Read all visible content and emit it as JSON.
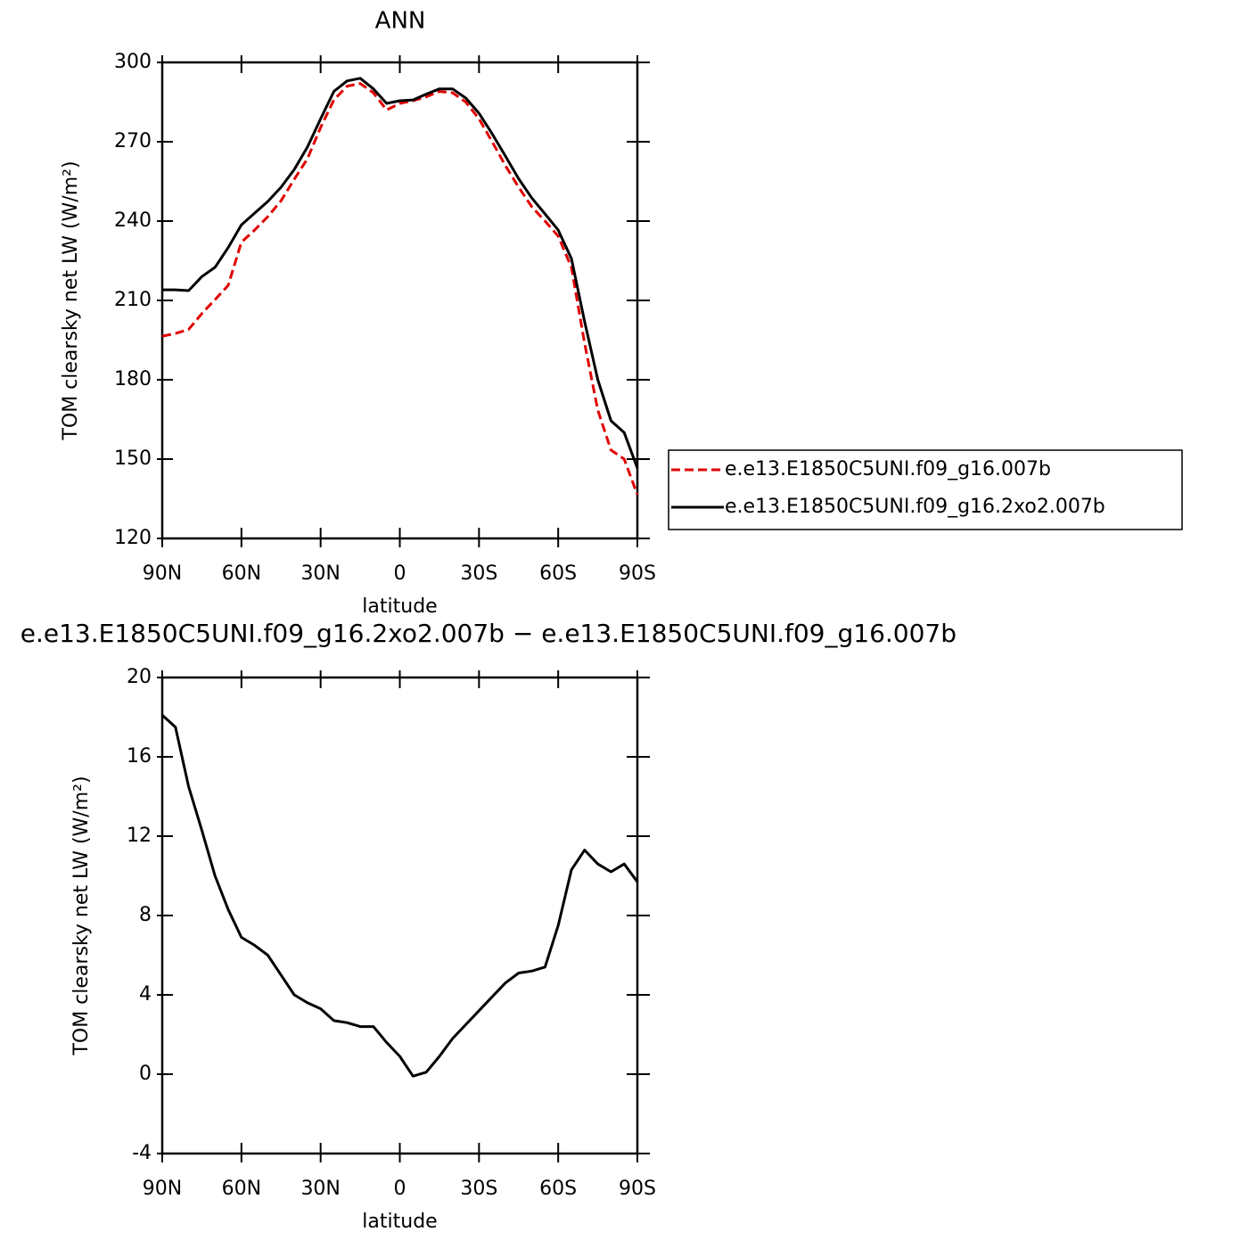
{
  "chart_data": [
    {
      "type": "line",
      "title": "ANN",
      "xlabel": "latitude",
      "ylabel": "TOM clearsky net LW (W/m²)",
      "x": [
        90,
        85,
        80,
        75,
        70,
        65,
        60,
        55,
        50,
        45,
        40,
        35,
        30,
        25,
        20,
        15,
        10,
        5,
        0,
        -5,
        -10,
        -15,
        -20,
        -25,
        -30,
        -35,
        -40,
        -45,
        -50,
        -55,
        -60,
        -65,
        -70,
        -75,
        -80,
        -85,
        -90
      ],
      "series": [
        {
          "name": "e.e13.E1850C5UNI.f09_g16.007b",
          "color": "#e00000",
          "line_style": "dashed",
          "values": [
            196.5,
            197.5,
            199,
            205,
            210.3,
            215.7,
            232,
            236.6,
            241.7,
            247.7,
            255.8,
            263.6,
            275.4,
            285.8,
            291,
            292,
            288.5,
            282,
            284.5,
            285.5,
            287,
            289,
            288.5,
            285,
            278.7,
            270,
            261,
            252.8,
            245.4,
            240,
            234.3,
            222.5,
            193.8,
            168.5,
            153.4,
            150,
            136.5
          ]
        },
        {
          "name": "e.e13.E1850C5UNI.f09_g16.2xo2.007b",
          "color": "#000000",
          "line_style": "solid",
          "values": [
            214,
            214,
            213.7,
            219,
            222.5,
            230,
            238.6,
            243,
            247.4,
            252.8,
            259.5,
            268,
            278.7,
            289,
            293,
            294,
            290,
            284.5,
            285.5,
            285.8,
            288,
            290,
            290,
            286.5,
            280.8,
            273,
            264.6,
            256,
            248.7,
            242.7,
            236.6,
            225.8,
            202,
            180,
            164.5,
            160,
            146.6
          ]
        }
      ],
      "xlim": [
        90,
        -90
      ],
      "xticks": [
        {
          "value": 90,
          "label": "90N"
        },
        {
          "value": 60,
          "label": "60N"
        },
        {
          "value": 30,
          "label": "30N"
        },
        0,
        {
          "value": -30,
          "label": "30S"
        },
        {
          "value": -60,
          "label": "60S"
        },
        {
          "value": -90,
          "label": "90S"
        }
      ],
      "ylim": [
        120,
        300
      ],
      "yticks": [
        120,
        150,
        180,
        210,
        240,
        270,
        300
      ],
      "legend": "right"
    },
    {
      "type": "line",
      "title": "e.e13.E1850C5UNI.f09_g16.2xo2.007b − e.e13.E1850C5UNI.f09_g16.007b",
      "xlabel": "latitude",
      "ylabel": "TOM clearsky net LW (W/m²)",
      "x": [
        90,
        85,
        80,
        75,
        70,
        65,
        60,
        55,
        50,
        45,
        40,
        35,
        30,
        25,
        20,
        15,
        10,
        5,
        0,
        -5,
        -10,
        -15,
        -20,
        -25,
        -30,
        -35,
        -40,
        -45,
        -50,
        -55,
        -60,
        -65,
        -70,
        -75,
        -80,
        -85,
        -90
      ],
      "series": [
        {
          "color": "#000000",
          "line_style": "solid",
          "values": [
            18.1,
            17.5,
            14.5,
            12.3,
            10,
            8.3,
            6.9,
            6.5,
            6.0,
            5.0,
            4.0,
            3.6,
            3.3,
            2.7,
            2.6,
            2.4,
            2.4,
            1.6,
            0.9,
            -0.1,
            0.1,
            0.9,
            1.8,
            2.5,
            3.2,
            3.9,
            4.6,
            5.1,
            5.2,
            5.4,
            7.5,
            10.3,
            11.3,
            10.6,
            10.2,
            10.6,
            9.7
          ]
        }
      ],
      "xlim": [
        90,
        -90
      ],
      "xticks": [
        {
          "value": 90,
          "label": "90N"
        },
        {
          "value": 60,
          "label": "60N"
        },
        {
          "value": 30,
          "label": "30N"
        },
        0,
        {
          "value": -30,
          "label": "30S"
        },
        {
          "value": -60,
          "label": "60S"
        },
        {
          "value": -90,
          "label": "90S"
        }
      ],
      "ylim": [
        -4,
        20
      ],
      "yticks": [
        -4,
        0,
        4,
        8,
        12,
        16,
        20
      ]
    }
  ]
}
